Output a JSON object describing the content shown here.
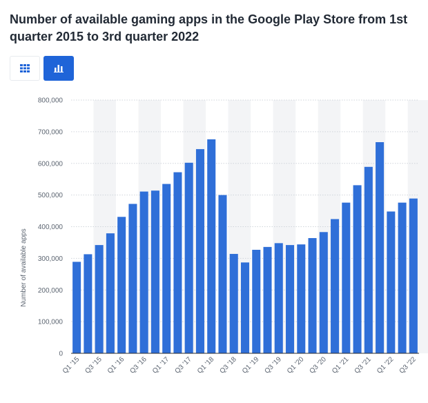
{
  "header": {
    "title": "Number of available gaming apps in the Google Play Store from 1st quarter 2015 to 3rd quarter 2022"
  },
  "toolbar": {
    "table_view_icon": "grid-icon",
    "chart_view_icon": "bar-chart-icon",
    "active_view": "chart"
  },
  "colors": {
    "bar": "#2f6fd8",
    "active_toggle": "#1f64d8",
    "band": "#f3f4f6"
  },
  "chart_data": {
    "type": "bar",
    "ylabel": "Number of available apps",
    "ylim": [
      0,
      800000
    ],
    "yticks": [
      0,
      100000,
      200000,
      300000,
      400000,
      500000,
      600000,
      700000,
      800000
    ],
    "ytick_labels": [
      "0",
      "100,000",
      "200,000",
      "300,000",
      "400,000",
      "500,000",
      "600,000",
      "700,000",
      "800,000"
    ],
    "grid": true,
    "categories": [
      "Q1 '15",
      "Q2 '15",
      "Q3 '15",
      "Q4 '15",
      "Q1 '16",
      "Q2 '16",
      "Q3 '16",
      "Q4 '16",
      "Q1 '17",
      "Q2 '17",
      "Q3 '17",
      "Q4 '17",
      "Q1 '18",
      "Q2 '18",
      "Q3 '18",
      "Q4 '18",
      "Q1 '19",
      "Q2 '19",
      "Q3 '19",
      "Q4 '19",
      "Q1 '20",
      "Q2 '20",
      "Q3 '20",
      "Q4 '20",
      "Q1 '21",
      "Q2 '21",
      "Q3 '21",
      "Q4 '21",
      "Q1 '22",
      "Q2 '22",
      "Q3 '22"
    ],
    "shown_tick_labels": [
      "Q1 '15",
      "Q3 '15",
      "Q1 '16",
      "Q3 '16",
      "Q1 '17",
      "Q3 '17",
      "Q1 '18",
      "Q3 '18",
      "Q1 '19",
      "Q3 '19",
      "Q1 '20",
      "Q3 '20",
      "Q1 '21",
      "Q3 '21",
      "Q1 '22",
      "Q3 '22"
    ],
    "values": [
      289000,
      313000,
      342000,
      379000,
      431000,
      472000,
      511000,
      514000,
      535000,
      572000,
      602000,
      645000,
      676000,
      500000,
      314000,
      287000,
      327000,
      336000,
      348000,
      342000,
      344000,
      364000,
      383000,
      424000,
      476000,
      531000,
      589000,
      667000,
      448000,
      476000,
      489000
    ]
  }
}
